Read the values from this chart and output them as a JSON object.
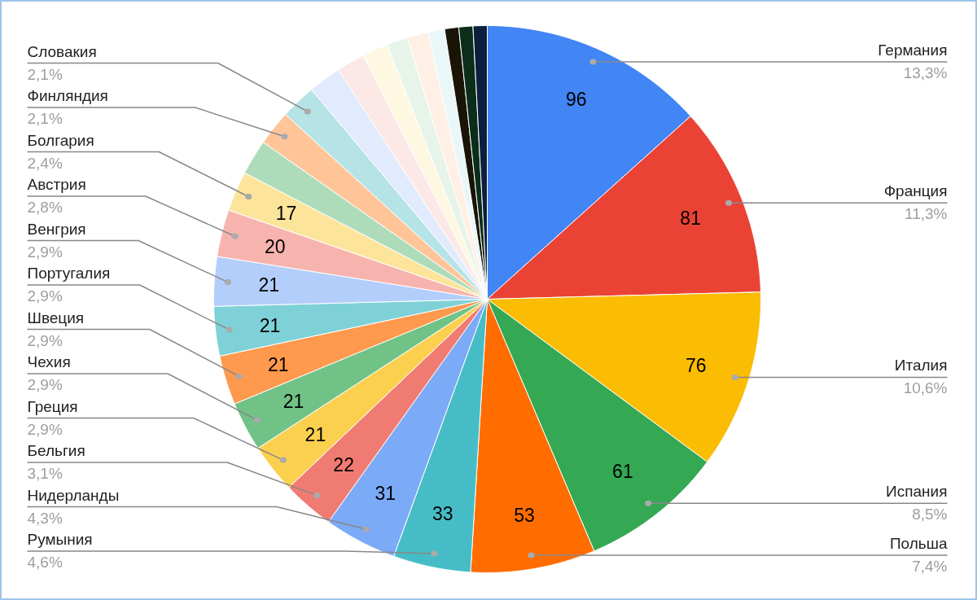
{
  "chart_data": {
    "type": "pie",
    "categories": [
      "Германия",
      "Франция",
      "Италия",
      "Испания",
      "Польша",
      "Румыния",
      "Нидерланды",
      "Бельгия",
      "Греция",
      "Чехия",
      "Швеция",
      "Португалия",
      "Венгрия",
      "Австрия",
      "Болгария",
      null,
      "Финляндия",
      "Словакия",
      null,
      null,
      null,
      null,
      null,
      null,
      null,
      null,
      null
    ],
    "values": [
      96,
      81,
      76,
      61,
      53,
      33,
      31,
      22,
      21,
      21,
      21,
      21,
      21,
      20,
      17,
      15,
      15,
      15,
      14,
      12,
      11,
      9,
      9,
      7,
      6,
      6,
      6
    ],
    "colors": [
      "#4285f4",
      "#ea4335",
      "#fbbc04",
      "#34a853",
      "#ff6d01",
      "#46bdc6",
      "#7baaf7",
      "#f07b72",
      "#fcd04f",
      "#71c287",
      "#ff994d",
      "#7ed1d7",
      "#b3cefb",
      "#f7b4ae",
      "#fde49b",
      "#aedcba",
      "#ffc599",
      "#b5e3e6",
      "#e1ebfd",
      "#fce8e6",
      "#fef8e3",
      "#e6f4ea",
      "#ffefe4",
      "#e9f7f8",
      "#1a1406",
      "#0b2d1a",
      "#0c1f3d"
    ],
    "value_labels": [
      "96",
      "81",
      "76",
      "61",
      "53",
      "33",
      "31",
      "22",
      "21",
      "21",
      "21",
      "21",
      "21",
      "20",
      "17",
      null,
      null,
      null,
      null,
      null,
      null,
      null,
      null,
      null,
      null,
      null,
      null
    ],
    "annotations": [
      "13,3%",
      "11,3%",
      "10,6%",
      "8,5%",
      "7,4%",
      "4,6%",
      "4,3%",
      "3,1%",
      "2,9%",
      "2,9%",
      "2,9%",
      "2,9%",
      "2,9%",
      "2,8%",
      "2,4%",
      "2,1%",
      "2,1%"
    ]
  }
}
